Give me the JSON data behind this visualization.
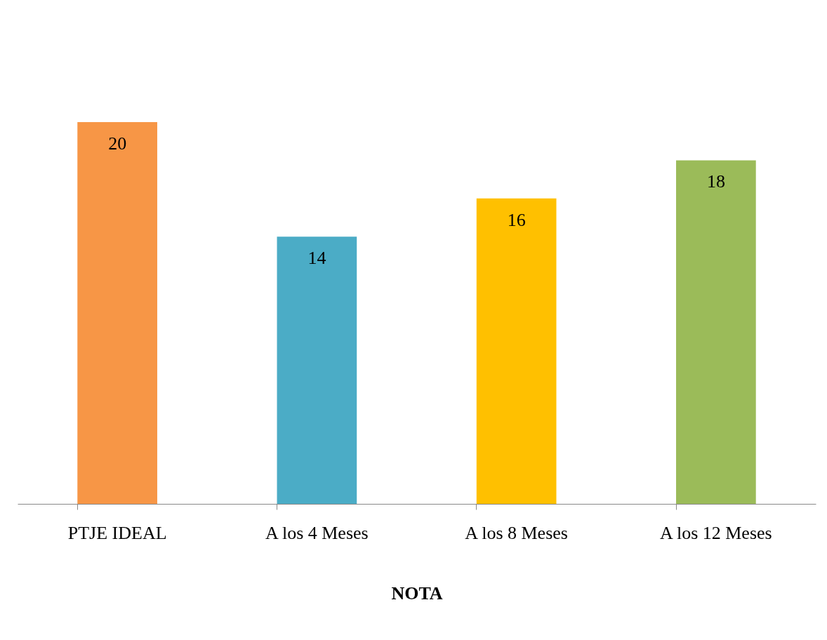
{
  "chart_data": {
    "type": "bar",
    "xlabel": "NOTA",
    "categories": [
      "PTJE IDEAL",
      "A los  4 Meses",
      "A los 8 Meses",
      "A los  12 Meses"
    ],
    "values": [
      20,
      14,
      16,
      18
    ],
    "colors": [
      "#f79646",
      "#4bacc6",
      "#ffc000",
      "#9bbb59"
    ],
    "data_labels": true
  }
}
